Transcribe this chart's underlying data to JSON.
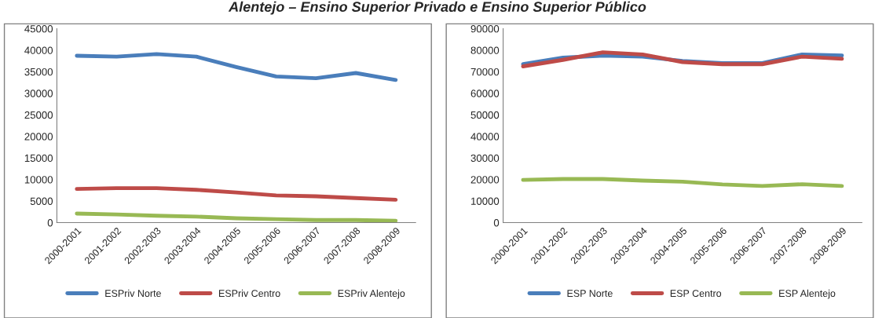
{
  "chart_data": [
    {
      "type": "line",
      "title": "Alentejo – Ensino Superior Privado e Ensino Superior Público",
      "categories": [
        "2000-2001",
        "2001-2002",
        "2002-2003",
        "2003-2004",
        "2004-2005",
        "2005-2006",
        "2006-2007",
        "2007-2008",
        "2008-2009"
      ],
      "series": [
        {
          "name": "ESPriv Norte",
          "color": "#4a7ebb",
          "values": [
            38700,
            38500,
            39100,
            38500,
            36100,
            33900,
            33500,
            34700,
            33100
          ]
        },
        {
          "name": "ESPriv Centro",
          "color": "#be4b48",
          "values": [
            7800,
            8000,
            8000,
            7600,
            7000,
            6300,
            6100,
            5700,
            5300
          ]
        },
        {
          "name": "ESPriv Alentejo",
          "color": "#98b954",
          "values": [
            2100,
            1900,
            1600,
            1400,
            1000,
            800,
            600,
            600,
            400
          ]
        }
      ],
      "ylim": [
        0,
        45000
      ],
      "yticks": [
        0,
        5000,
        10000,
        15000,
        20000,
        25000,
        30000,
        35000,
        40000,
        45000
      ],
      "grid": false,
      "legend": "bottom",
      "marker": "none",
      "line_style": "solid"
    },
    {
      "type": "line",
      "categories": [
        "2000-2001",
        "2001-2002",
        "2002-2003",
        "2003-2004",
        "2004-2005",
        "2005-2006",
        "2006-2007",
        "2007-2008",
        "2008-2009"
      ],
      "series": [
        {
          "name": "ESP Norte",
          "color": "#4a7ebb",
          "values": [
            73500,
            76500,
            77500,
            77000,
            75000,
            74000,
            74000,
            78000,
            77500
          ]
        },
        {
          "name": "ESP Centro",
          "color": "#be4b48",
          "values": [
            72500,
            75500,
            79000,
            78000,
            74500,
            73500,
            73500,
            77000,
            76000
          ]
        },
        {
          "name": "ESP Alentejo",
          "color": "#98b954",
          "values": [
            19800,
            20200,
            20200,
            19500,
            19000,
            17700,
            17000,
            17800,
            17000
          ]
        }
      ],
      "ylim": [
        0,
        90000
      ],
      "yticks": [
        0,
        10000,
        20000,
        30000,
        40000,
        50000,
        60000,
        70000,
        80000,
        90000
      ],
      "grid": false,
      "legend": "bottom",
      "marker": "none",
      "line_style": "solid"
    }
  ]
}
